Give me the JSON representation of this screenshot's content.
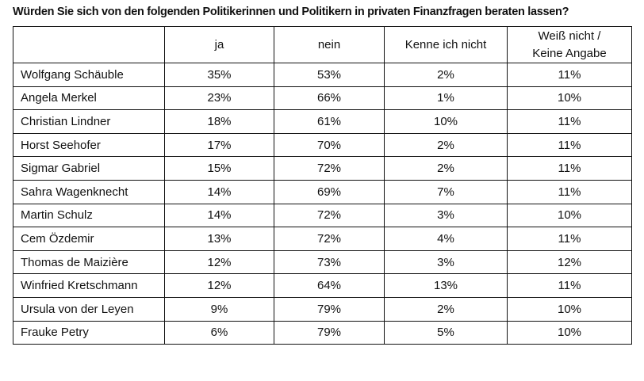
{
  "chart_data": {
    "type": "table",
    "title": "Würden Sie sich von den folgenden Politikerinnen und Politikern in privaten Finanzfragen beraten lassen?",
    "columns": [
      "",
      "ja",
      "nein",
      "Kenne ich nicht",
      "Weiß nicht /\nKeine Angabe"
    ],
    "column_lines": [
      "Weiß nicht /",
      "Keine Angabe"
    ],
    "rows": [
      [
        "Wolfgang Schäuble",
        "35%",
        "53%",
        "2%",
        "11%"
      ],
      [
        "Angela Merkel",
        "23%",
        "66%",
        "1%",
        "10%"
      ],
      [
        "Christian Lindner",
        "18%",
        "61%",
        "10%",
        "11%"
      ],
      [
        "Horst Seehofer",
        "17%",
        "70%",
        "2%",
        "11%"
      ],
      [
        "Sigmar Gabriel",
        "15%",
        "72%",
        "2%",
        "11%"
      ],
      [
        "Sahra Wagenknecht",
        "14%",
        "69%",
        "7%",
        "11%"
      ],
      [
        "Martin Schulz",
        "14%",
        "72%",
        "3%",
        "10%"
      ],
      [
        "Cem Özdemir",
        "13%",
        "72%",
        "4%",
        "11%"
      ],
      [
        "Thomas de Maizière",
        "12%",
        "73%",
        "3%",
        "12%"
      ],
      [
        "Winfried Kretschmann",
        "12%",
        "64%",
        "13%",
        "11%"
      ],
      [
        "Ursula von der Leyen",
        "9%",
        "79%",
        "2%",
        "10%"
      ],
      [
        "Frauke Petry",
        "6%",
        "79%",
        "5%",
        "10%"
      ]
    ]
  }
}
